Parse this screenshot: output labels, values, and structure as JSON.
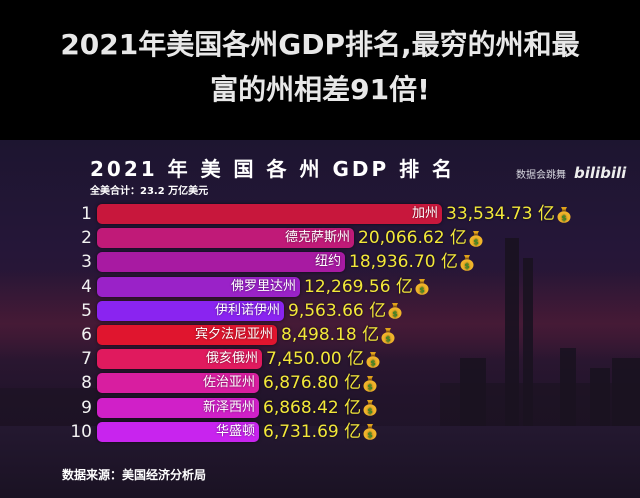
{
  "headline": {
    "line1": "2021年美国各州GDP排名,最穷的州和最",
    "line2": "富的州相差91倍!"
  },
  "chart": {
    "title": "2021 年 美 国 各 州 GDP 排 名",
    "subtitle": "全美合计：23.2 万亿美元",
    "watermark_text": "数据会跳舞",
    "watermark_logo": "bilibili",
    "source": "数据来源：美国经济分析局",
    "unit_suffix": "亿",
    "icon": "money-bag-icon"
  },
  "rows": [
    {
      "rank": "1",
      "state": "加州",
      "value_label": "33,534.73 亿",
      "color": "#c8173c"
    },
    {
      "rank": "2",
      "state": "德克萨斯州",
      "value_label": "20,066.62 亿",
      "color": "#c01a78"
    },
    {
      "rank": "3",
      "state": "纽约",
      "value_label": "18,936.70 亿",
      "color": "#a81aa2"
    },
    {
      "rank": "4",
      "state": "佛罗里达州",
      "value_label": "12,269.56 亿",
      "color": "#9a22c8"
    },
    {
      "rank": "5",
      "state": "伊利诺伊州",
      "value_label": "9,563.66 亿",
      "color": "#8a24f0"
    },
    {
      "rank": "6",
      "state": "宾夕法尼亚州",
      "value_label": "8,498.18 亿",
      "color": "#e0152e"
    },
    {
      "rank": "7",
      "state": "俄亥俄州",
      "value_label": "7,450.00 亿",
      "color": "#e01a5e"
    },
    {
      "rank": "8",
      "state": "佐治亚州",
      "value_label": "6,876.80 亿",
      "color": "#d81ea0"
    },
    {
      "rank": "9",
      "state": "新泽西州",
      "value_label": "6,868.42 亿",
      "color": "#d020c8"
    },
    {
      "rank": "10",
      "state": "华盛顿",
      "value_label": "6,731.69 亿",
      "color": "#c824ee"
    }
  ],
  "chart_data": {
    "type": "bar",
    "orientation": "horizontal",
    "title": "2021 年 美 国 各 州 GDP 排 名",
    "subtitle": "全美合计：23.2 万亿美元",
    "xlabel": "",
    "ylabel": "",
    "unit": "亿美元",
    "categories": [
      "加州",
      "德克萨斯州",
      "纽约",
      "佛罗里达州",
      "伊利诺伊州",
      "宾夕法尼亚州",
      "俄亥俄州",
      "佐治亚州",
      "新泽西州",
      "华盛顿"
    ],
    "values": [
      33534.73,
      20066.62,
      18936.7,
      12269.56,
      9563.66,
      8498.18,
      7450.0,
      6876.8,
      6868.42,
      6731.69
    ],
    "ranks": [
      1,
      2,
      3,
      4,
      5,
      6,
      7,
      8,
      9,
      10
    ],
    "grid": false,
    "legend": null,
    "source": "数据来源：美国经济分析局"
  }
}
